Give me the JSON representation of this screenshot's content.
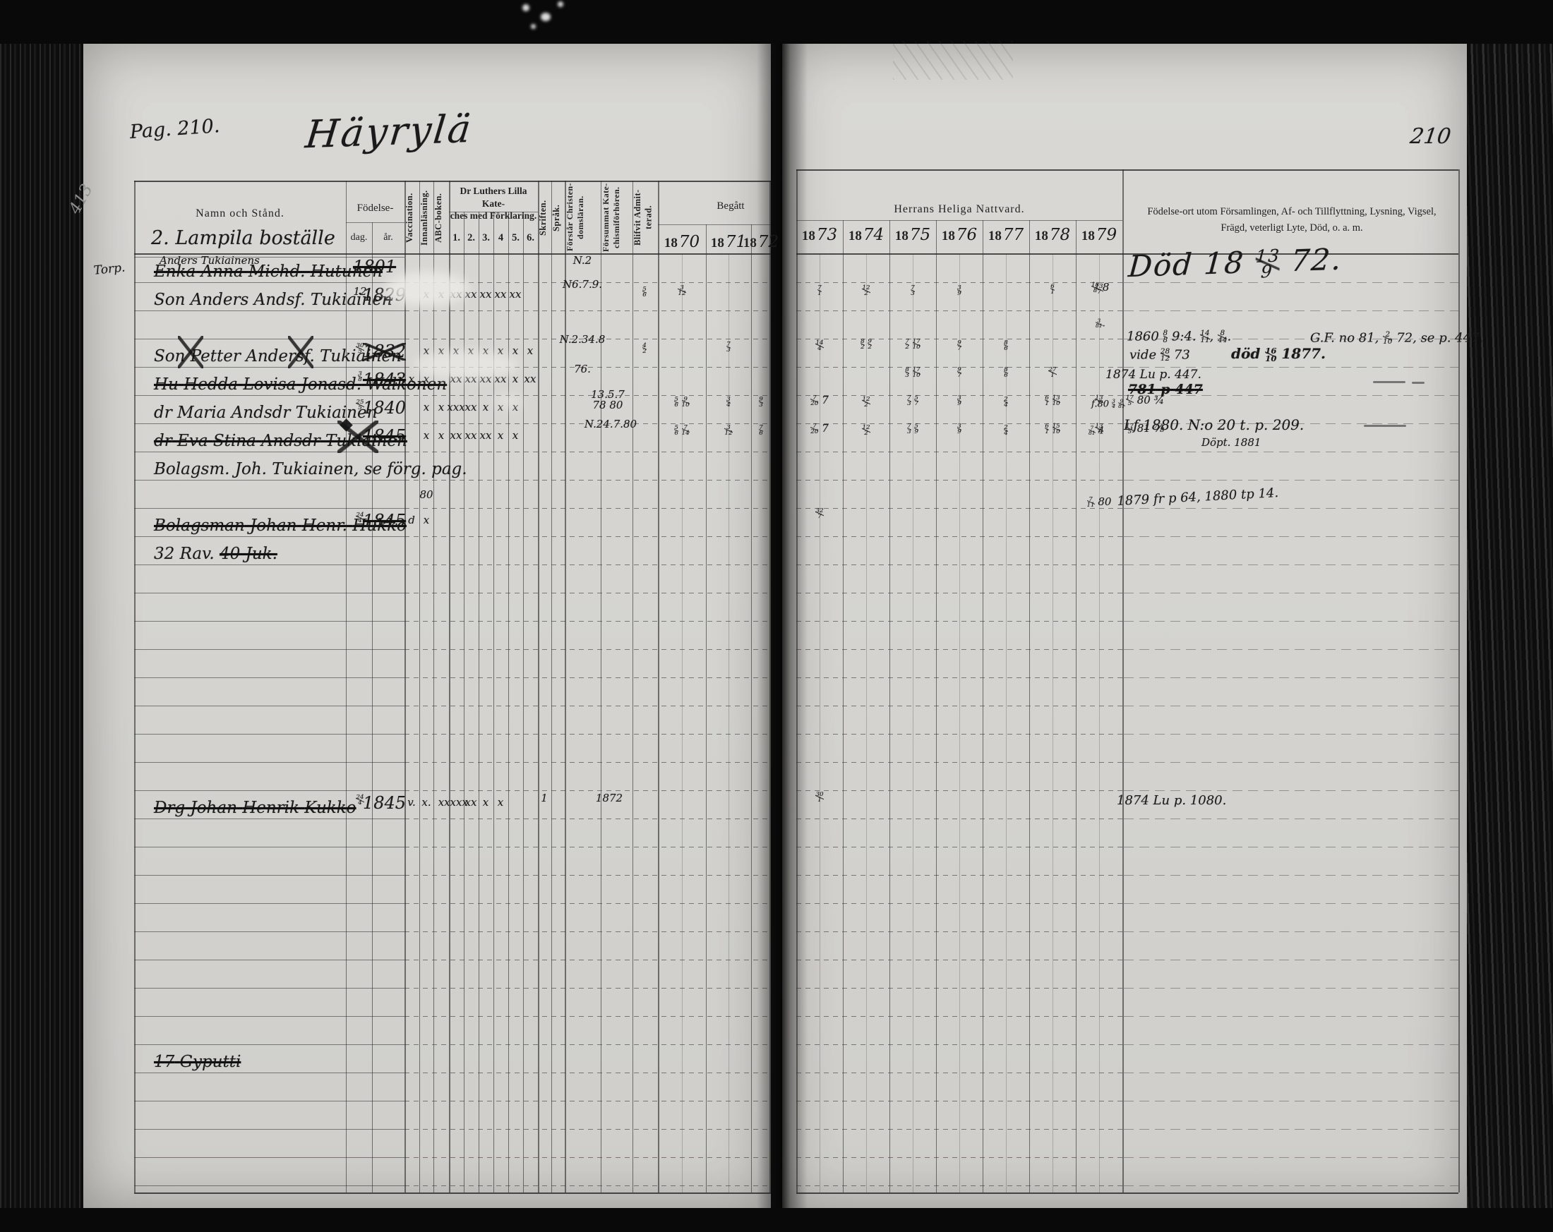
{
  "page": {
    "pag_label": "Pag. 210.",
    "title": "Häyrylä",
    "page_number": "210",
    "section_heading": "2. Lampila boställe",
    "margin_pencil": "413"
  },
  "headers": {
    "name": "Namn och Stånd.",
    "birth": "Födelse-",
    "birth_day": "dag.",
    "birth_year": "år.",
    "vaccination": "Vaccination.",
    "innanlasning": "Innanläsning.",
    "abc_boken": "ABC-boken.",
    "kateches_title": "Dr Luthers Lilla Kate-\nches med Förklaring.",
    "kateches_cols": [
      "1.",
      "2.",
      "3.",
      "4",
      "5.",
      "6."
    ],
    "skriften": "Skriften.",
    "sprak": "Språk.",
    "forstar": "Förstår Christen-\ndomsläran.",
    "forsummat": "Försummat Kate-\nchismiförhören.",
    "blifvit": "Blifvit Admit-\nterad.",
    "begatt": "Begått",
    "nattvard": "Herrans Heliga Nattvard.",
    "notes": "Födelse-ort utom Församlingen, Af- och Tillflyttning, Lysning, Vigsel,\nFrägd, veterligt Lyte, Död, o. a. m."
  },
  "years_left": [
    {
      "p": "18",
      "s": "70"
    },
    {
      "p": "18",
      "s": "71"
    },
    {
      "p": "18",
      "s": "72"
    }
  ],
  "years_right": [
    {
      "p": "18",
      "s": "73"
    },
    {
      "p": "18",
      "s": "74"
    },
    {
      "p": "18",
      "s": "75"
    },
    {
      "p": "18",
      "s": "76"
    },
    {
      "p": "18",
      "s": "77"
    },
    {
      "p": "18",
      "s": "78"
    },
    {
      "p": "18",
      "s": "79"
    }
  ],
  "entries": [
    {
      "row": 0,
      "margin": "Torp.",
      "over": "Anders Tukiainens",
      "name": "Enka Anna Michd. Hutunen",
      "struck": true,
      "year": "1801",
      "year_struck": true,
      "marks": [
        [
          "forstar",
          "N.2",
          2
        ]
      ]
    },
    {
      "row": 1,
      "name": "Son Anders Andsf. Tukiainen",
      "day": "12",
      "year": "1829",
      "marks": [
        [
          "innan",
          "x"
        ],
        [
          "abc",
          "x"
        ],
        [
          "k1",
          "xx"
        ],
        [
          "k2",
          "xx"
        ],
        [
          "k3",
          "xx"
        ],
        [
          "k4",
          "xx"
        ],
        [
          "k5",
          "xx"
        ],
        [
          "forstar",
          "N6.7.9.",
          -4
        ],
        [
          "blifvit",
          "5/6",
          6
        ],
        [
          "y70",
          "3/12",
          4
        ],
        [
          "y73",
          "7/1",
          4
        ],
        [
          "y74",
          "12/2",
          4
        ],
        [
          "y75",
          "7/3",
          4
        ],
        [
          "y76",
          "3/9",
          4
        ],
        [
          "y78",
          "6/1",
          2
        ],
        [
          "y79",
          "13/7",
          2
        ]
      ]
    },
    {
      "row": 3,
      "name": "Son Petter Andersf. Tukiainen",
      "day": "30/5",
      "year": "1832",
      "year_crossed": true,
      "crosses": [
        [
          252,
          36
        ],
        [
          408,
          36
        ]
      ],
      "marks": [
        [
          "innan",
          "x"
        ],
        [
          "abc",
          "x"
        ],
        [
          "k1",
          "x"
        ],
        [
          "k2",
          "x"
        ],
        [
          "k3",
          "x"
        ],
        [
          "k4",
          "x"
        ],
        [
          "k5",
          "x"
        ],
        [
          "k6",
          "x"
        ],
        [
          "forstar",
          "N.2.34.8",
          -6
        ],
        [
          "forstar",
          "76.",
          36
        ],
        [
          "blifvit",
          "4/2",
          6
        ],
        [
          "y71",
          "7/3",
          4
        ],
        [
          "y73",
          "14/4",
          2
        ],
        [
          "y74",
          "8/2 9/2",
          0
        ],
        [
          "y75",
          "7/2 17/10",
          0
        ],
        [
          "y76",
          "9/7",
          2
        ],
        [
          "y77",
          "8/6",
          2
        ]
      ]
    },
    {
      "row": 4,
      "name": "Hu Hedda Lovisa Jonasd. Walkonen",
      "struck": true,
      "day": "3/8",
      "year": "1843",
      "year_struck": true,
      "marks": [
        [
          "vacc",
          "x"
        ],
        [
          "innan",
          "x"
        ],
        [
          "k1",
          "xx"
        ],
        [
          "k2",
          "xx"
        ],
        [
          "k3",
          "xx"
        ],
        [
          "k4",
          "xx"
        ],
        [
          "k5",
          "x"
        ],
        [
          "k6",
          "xx"
        ],
        [
          "y75",
          "8/3 17/10",
          0
        ],
        [
          "y76",
          "9/7",
          0
        ],
        [
          "y77",
          "8/6",
          0
        ],
        [
          "y78",
          "27/1",
          0
        ]
      ]
    },
    {
      "row": 5,
      "name": "dr Maria Andsdr Tukiainen",
      "day": "25/5",
      "year": "1840",
      "marks": [
        [
          "innan",
          "x"
        ],
        [
          "abc",
          "x"
        ],
        [
          "k1",
          "xxx"
        ],
        [
          "k2",
          "xx"
        ],
        [
          "k3",
          "x"
        ],
        [
          "k4",
          "x"
        ],
        [
          "k5",
          "x"
        ],
        [
          "forsummat",
          "13.5.7\n78 80",
          -8,
          -12
        ],
        [
          "y70",
          "5/6 9/10",
          2
        ],
        [
          "y71",
          "3/4",
          2
        ],
        [
          "y72",
          "9/3",
          2
        ],
        [
          "y73",
          "7/20 7",
          0
        ],
        [
          "y74",
          "12/2",
          2
        ],
        [
          "y75",
          "7/3 5/7",
          0
        ],
        [
          "y76",
          "3/9",
          0
        ],
        [
          "y77",
          "2/4",
          2
        ],
        [
          "y78",
          "6/1 13/10",
          0
        ],
        [
          "y79",
          "13/7",
          0
        ],
        [
          "post",
          "17/5 80 ¾",
          0
        ]
      ]
    },
    {
      "row": 6,
      "name": "dr Eva Stina Andsdr Tukiainen",
      "struck": true,
      "year": "1845",
      "year_struck": true,
      "crosses": [
        [
          478,
          58
        ]
      ],
      "marks": [
        [
          "innan",
          "x"
        ],
        [
          "abc",
          "x"
        ],
        [
          "k1",
          "xx"
        ],
        [
          "k2",
          "xx"
        ],
        [
          "k3",
          "xx"
        ],
        [
          "k4",
          "x"
        ],
        [
          "k5",
          "x"
        ],
        [
          "forsummat",
          "N.24.7.80",
          -6,
          -8
        ],
        [
          "y70",
          "5/6 7/14",
          2
        ],
        [
          "y71",
          "3/12",
          2
        ],
        [
          "y72",
          "7/6",
          2
        ],
        [
          "y73",
          "7/20 7",
          0
        ],
        [
          "y74",
          "12/2",
          2
        ],
        [
          "y75",
          "7/3 5/9",
          0
        ],
        [
          "y76",
          "3/9",
          0
        ],
        [
          "y77",
          "2/4",
          2
        ],
        [
          "y78",
          "6/1 15/10",
          0
        ],
        [
          "y79",
          "13/7",
          0
        ],
        [
          "post",
          "17/5 81 ⅞",
          0
        ]
      ]
    },
    {
      "row": 7,
      "name": "Bolagsm. Joh. Tukiainen, se förg. pag."
    },
    {
      "row": 9,
      "name": "Bolagsman Johan Henr. Hukko",
      "struck": true,
      "day": "24/4",
      "year": "1845",
      "year_struck": true,
      "marks": [
        [
          "vacc",
          "d"
        ],
        [
          "innan",
          "x"
        ],
        [
          "innan",
          "80",
          -26
        ],
        [
          "y73",
          "32/7",
          0
        ],
        [
          "y79",
          "7/11 80",
          -16
        ]
      ]
    },
    {
      "row": 10,
      "prefix": "32 Rav. ",
      "name": "40 Juk.",
      "struck": true
    },
    {
      "row": 19,
      "name": "Drg Johan Henrik Kukko",
      "struck": true,
      "day": "24/4",
      "year": "1845",
      "marks": [
        [
          "vacc",
          "v."
        ],
        [
          "innan",
          "x."
        ],
        [
          "abc",
          "x"
        ],
        [
          "k1",
          "xxxx"
        ],
        [
          "k2",
          "xx"
        ],
        [
          "k3",
          "x"
        ],
        [
          "k4",
          "x"
        ],
        [
          "skr",
          "1",
          4
        ],
        [
          "forsummat",
          "1872",
          4,
          -10
        ],
        [
          "y73",
          "30/1",
          2
        ]
      ]
    },
    {
      "row": 28,
      "name": "17 Gyputti",
      "struck": true
    }
  ],
  "notes": [
    {
      "id": "n1",
      "text": "Död 18 13/9 72."
    },
    {
      "id": "n2a",
      "text": "18/8 8"
    },
    {
      "id": "n2b",
      "text": "3/81."
    },
    {
      "id": "n3a",
      "text": "1860 8/8 9:4. 14/11, 8/44."
    },
    {
      "id": "n3b",
      "text": "G.F. no 81, 2/10 72, se p. 447."
    },
    {
      "id": "n3c",
      "text": "vide 28/12 73"
    },
    {
      "id": "n3d",
      "text": "död 16/10 1877.",
      "cls": "bold"
    },
    {
      "id": "n4a",
      "text": "1874 Lu p. 447."
    },
    {
      "id": "n4b",
      "text": "781 p 447",
      "cls": "bold struck"
    },
    {
      "id": "n5",
      "text": "f.80 3/4 9/81"
    },
    {
      "id": "n6c",
      "text": "7/81 4"
    },
    {
      "id": "n6a",
      "text": "Lf 1880. N:o 20 t. p. 209."
    },
    {
      "id": "n6b",
      "text": "Döpt. 1881"
    },
    {
      "id": "n8a",
      "text": "1879 fr p 64, 1880 tp 14."
    },
    {
      "id": "n10",
      "text": "1874 Lu p. 1080."
    }
  ]
}
